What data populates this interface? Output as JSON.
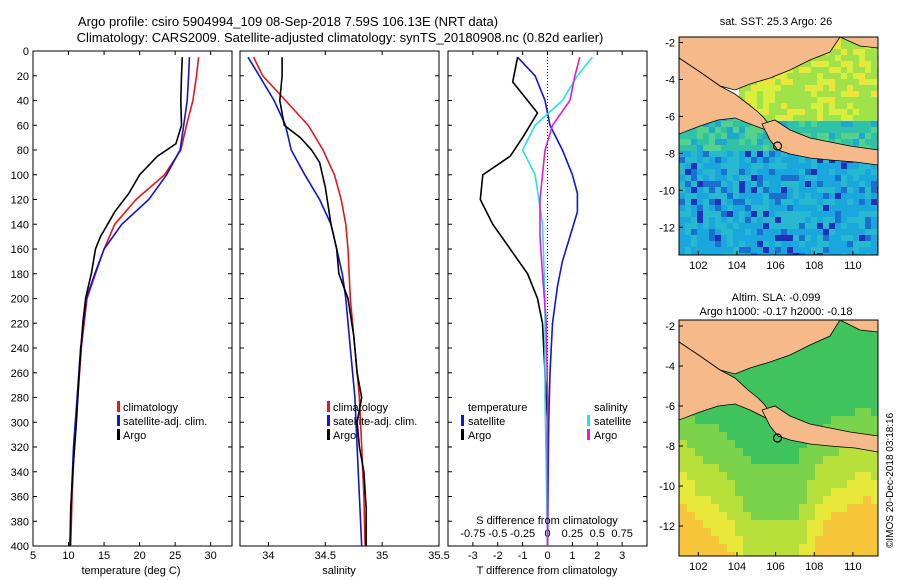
{
  "title": {
    "line1": "Argo profile: csiro 5904994_109 08-Sep-2018 7.59S 106.13E (NRT data)",
    "line2": "Climatology: CARS2009. Satellite-adjusted climatology: synTS_20180908.nc (0.82d earlier)"
  },
  "watermark": "©IMOS 20-Dec-2018 03:18:16",
  "colors": {
    "climatology": "#e8161b",
    "satellite": "#1016d4",
    "argo": "#000000",
    "sat_salinity": "#1fe5e6",
    "argo_salinity": "#e317e0",
    "land": "#f5b98a"
  },
  "chart_data": [
    {
      "type": "line",
      "title": "",
      "xlabel": "temperature (deg C)",
      "ylabel": "",
      "xlim": [
        5,
        33
      ],
      "ylim": [
        400,
        0
      ],
      "xticks": [
        "5",
        "10",
        "15",
        "20",
        "25",
        "30"
      ],
      "xtick_values": [
        5,
        10,
        15,
        20,
        25,
        30
      ],
      "yticks": [
        "0",
        "20",
        "40",
        "60",
        "80",
        "100",
        "120",
        "140",
        "160",
        "180",
        "200",
        "220",
        "240",
        "260",
        "280",
        "300",
        "320",
        "340",
        "360",
        "380",
        "400"
      ],
      "legend": [
        "climatology",
        "satellite-adj. clim.",
        "Argo"
      ],
      "series": [
        {
          "name": "climatology",
          "color": "#e8161b",
          "points": [
            [
              28.3,
              5
            ],
            [
              28.0,
              20
            ],
            [
              27.5,
              40
            ],
            [
              26.6,
              60
            ],
            [
              25.8,
              80
            ],
            [
              23.5,
              100
            ],
            [
              19.5,
              120
            ],
            [
              16.5,
              140
            ],
            [
              15.0,
              160
            ],
            [
              13.8,
              180
            ],
            [
              12.6,
              200
            ],
            [
              11.8,
              240
            ],
            [
              11.3,
              280
            ],
            [
              10.8,
              320
            ],
            [
              10.5,
              360
            ],
            [
              10.3,
              400
            ]
          ]
        },
        {
          "name": "satellite-adj. clim.",
          "color": "#1016d4",
          "points": [
            [
              27.0,
              5
            ],
            [
              26.9,
              20
            ],
            [
              26.7,
              40
            ],
            [
              26.2,
              60
            ],
            [
              25.7,
              80
            ],
            [
              23.8,
              100
            ],
            [
              21.3,
              120
            ],
            [
              17.5,
              140
            ],
            [
              15.0,
              160
            ],
            [
              13.7,
              180
            ],
            [
              12.5,
              200
            ],
            [
              11.7,
              240
            ],
            [
              11.2,
              280
            ],
            [
              10.7,
              320
            ],
            [
              10.4,
              360
            ],
            [
              10.2,
              400
            ]
          ]
        },
        {
          "name": "Argo",
          "color": "#000000",
          "points": [
            [
              26.0,
              5
            ],
            [
              25.9,
              20
            ],
            [
              25.8,
              40
            ],
            [
              25.9,
              60
            ],
            [
              25.1,
              75
            ],
            [
              22.5,
              85
            ],
            [
              20.0,
              100
            ],
            [
              18.5,
              115
            ],
            [
              16.5,
              130
            ],
            [
              15.5,
              140
            ],
            [
              14.5,
              150
            ],
            [
              13.8,
              160
            ],
            [
              13.5,
              170
            ],
            [
              13.2,
              180
            ],
            [
              12.8,
              190
            ],
            [
              12.4,
              200
            ],
            [
              12.0,
              220
            ],
            [
              11.5,
              260
            ],
            [
              11.1,
              300
            ],
            [
              10.6,
              340
            ],
            [
              10.3,
              370
            ],
            [
              10.2,
              400
            ]
          ]
        }
      ]
    },
    {
      "type": "line",
      "title": "",
      "xlabel": "salinity",
      "ylabel": "",
      "xlim": [
        33.75,
        35.5
      ],
      "ylim": [
        400,
        0
      ],
      "xticks": [
        "34",
        "34.5",
        "35",
        "35.5"
      ],
      "xtick_values": [
        34,
        34.5,
        35,
        35.5
      ],
      "legend": [
        "climatology",
        "satellite-adj. clim.",
        "Argo"
      ],
      "series": [
        {
          "name": "climatology",
          "color": "#e8161b",
          "points": [
            [
              33.87,
              5
            ],
            [
              33.95,
              20
            ],
            [
              34.15,
              40
            ],
            [
              34.35,
              60
            ],
            [
              34.48,
              80
            ],
            [
              34.58,
              100
            ],
            [
              34.64,
              120
            ],
            [
              34.68,
              140
            ],
            [
              34.7,
              160
            ],
            [
              34.72,
              200
            ],
            [
              34.76,
              240
            ],
            [
              34.8,
              280
            ],
            [
              34.82,
              320
            ],
            [
              34.84,
              360
            ],
            [
              34.85,
              400
            ]
          ]
        },
        {
          "name": "satellite-adj. clim.",
          "color": "#1016d4",
          "points": [
            [
              33.82,
              5
            ],
            [
              33.92,
              20
            ],
            [
              34.05,
              40
            ],
            [
              34.15,
              60
            ],
            [
              34.2,
              80
            ],
            [
              34.32,
              100
            ],
            [
              34.45,
              120
            ],
            [
              34.55,
              140
            ],
            [
              34.6,
              160
            ],
            [
              34.65,
              180
            ],
            [
              34.68,
              200
            ],
            [
              34.72,
              240
            ],
            [
              34.76,
              280
            ],
            [
              34.78,
              320
            ],
            [
              34.8,
              360
            ],
            [
              34.82,
              400
            ]
          ]
        },
        {
          "name": "Argo",
          "color": "#000000",
          "points": [
            [
              34.12,
              5
            ],
            [
              34.12,
              20
            ],
            [
              34.1,
              40
            ],
            [
              34.14,
              60
            ],
            [
              34.28,
              70
            ],
            [
              34.38,
              80
            ],
            [
              34.45,
              90
            ],
            [
              34.5,
              110
            ],
            [
              34.55,
              140
            ],
            [
              34.6,
              160
            ],
            [
              34.62,
              180
            ],
            [
              34.7,
              200
            ],
            [
              34.75,
              230
            ],
            [
              34.78,
              260
            ],
            [
              34.82,
              280
            ],
            [
              34.78,
              300
            ],
            [
              34.8,
              320
            ],
            [
              34.84,
              340
            ],
            [
              34.86,
              370
            ],
            [
              34.86,
              400
            ]
          ]
        }
      ]
    },
    {
      "type": "line",
      "title": "",
      "xlabel": "T difference from climatology",
      "xlabel_top": "S difference from climatology",
      "ylabel": "",
      "xlim": [
        -4,
        4
      ],
      "ylim": [
        400,
        0
      ],
      "xticks": [
        "-3",
        "-2",
        "-1",
        "0",
        "1",
        "2",
        "3"
      ],
      "xtick_values": [
        -3,
        -2,
        -1,
        0,
        1,
        2,
        3
      ],
      "sticks": [
        "-0.75",
        "-0.5",
        "-0.25",
        "0",
        "0.25",
        "0.5",
        "0.75"
      ],
      "stick_values": [
        -0.75,
        -0.5,
        -0.25,
        0,
        0.25,
        0.5,
        0.75
      ],
      "legend_left_title": "temperature",
      "legend_right_title": "salinity",
      "legend": [
        "satellite",
        "Argo",
        "satellite",
        "Argo"
      ],
      "series": [
        {
          "name": "satellite",
          "color": "#1016d4",
          "points": [
            [
              -1.2,
              5
            ],
            [
              -0.5,
              20
            ],
            [
              -0.1,
              40
            ],
            [
              0.1,
              60
            ],
            [
              0.6,
              80
            ],
            [
              1.0,
              100
            ],
            [
              1.2,
              115
            ],
            [
              1.2,
              130
            ],
            [
              0.9,
              150
            ],
            [
              0.6,
              170
            ],
            [
              0.4,
              190
            ],
            [
              0.2,
              220
            ],
            [
              0.1,
              260
            ],
            [
              0.05,
              300
            ],
            [
              0.0,
              400
            ]
          ]
        },
        {
          "name": "Argo",
          "color": "#000000",
          "points": [
            [
              -1.2,
              5
            ],
            [
              -1.4,
              25
            ],
            [
              -0.4,
              50
            ],
            [
              -1.0,
              70
            ],
            [
              -1.5,
              85
            ],
            [
              -2.6,
              100
            ],
            [
              -2.7,
              120
            ],
            [
              -2.2,
              140
            ],
            [
              -1.5,
              160
            ],
            [
              -0.8,
              180
            ],
            [
              -0.4,
              200
            ],
            [
              -0.2,
              220
            ],
            [
              -0.1,
              260
            ],
            [
              0.0,
              300
            ],
            [
              0.0,
              400
            ]
          ]
        },
        {
          "name": "satellite",
          "color": "#1fe5e6",
          "points": [
            [
              1.8,
              5
            ],
            [
              1.2,
              20
            ],
            [
              0.6,
              40
            ],
            [
              -0.5,
              60
            ],
            [
              -1.0,
              80
            ],
            [
              -0.5,
              100
            ],
            [
              -0.2,
              140
            ],
            [
              -0.1,
              200
            ],
            [
              -0.1,
              280
            ],
            [
              -0.05,
              340
            ],
            [
              0.0,
              400
            ]
          ]
        },
        {
          "name": "Argo",
          "color": "#e317e0",
          "points": [
            [
              1.3,
              5
            ],
            [
              1.1,
              20
            ],
            [
              0.9,
              40
            ],
            [
              0.2,
              60
            ],
            [
              -0.1,
              80
            ],
            [
              -0.2,
              100
            ],
            [
              -0.3,
              120
            ],
            [
              -0.3,
              150
            ],
            [
              -0.2,
              180
            ],
            [
              -0.05,
              220
            ],
            [
              0.0,
              280
            ],
            [
              0.0,
              400
            ]
          ]
        }
      ]
    },
    {
      "type": "heatmap",
      "title": "sat. SST: 25.3 Argo: 26",
      "xticks": [
        "102",
        "104",
        "106",
        "108",
        "110"
      ],
      "xtick_values": [
        102,
        104,
        106,
        108,
        110
      ],
      "yticks": [
        "-2",
        "-4",
        "-6",
        "-8",
        "-10",
        "-12"
      ],
      "ytick_values": [
        -2,
        -4,
        -6,
        -8,
        -10,
        -12
      ],
      "xlim": [
        101,
        111.3
      ],
      "ylim": [
        -13.5,
        -1.7
      ],
      "marker": [
        106.1,
        -7.6
      ]
    },
    {
      "type": "heatmap",
      "title": "Altim. SLA: -0.099",
      "subtitle": "Argo h1000: -0.17 h2000: -0.18",
      "xticks": [
        "102",
        "104",
        "106",
        "108",
        "110"
      ],
      "xtick_values": [
        102,
        104,
        106,
        108,
        110
      ],
      "yticks": [
        "-2",
        "-4",
        "-6",
        "-8",
        "-10",
        "-12"
      ],
      "ytick_values": [
        -2,
        -4,
        -6,
        -8,
        -10,
        -12
      ],
      "xlim": [
        101,
        111.3
      ],
      "ylim": [
        -13.5,
        -1.7
      ],
      "marker": [
        106.1,
        -7.6
      ]
    }
  ]
}
